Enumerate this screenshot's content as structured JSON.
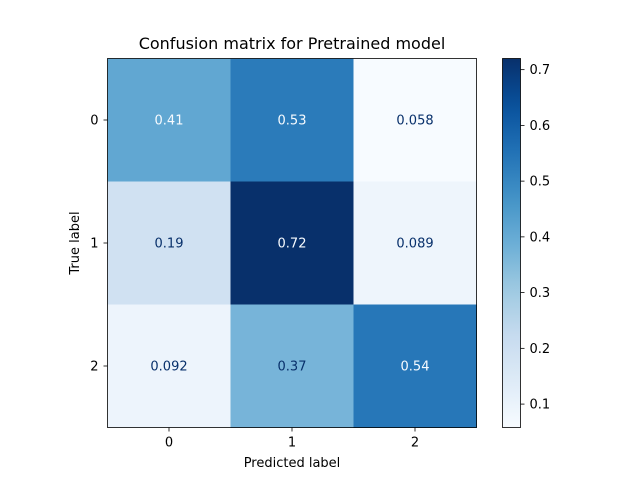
{
  "chart_data": {
    "type": "heatmap",
    "title": "Confusion matrix for Pretrained model",
    "xlabel": "Predicted label",
    "ylabel": "True label",
    "x_categories": [
      "0",
      "1",
      "2"
    ],
    "y_categories": [
      "0",
      "1",
      "2"
    ],
    "values": [
      [
        0.41,
        0.53,
        0.058
      ],
      [
        0.19,
        0.72,
        0.089
      ],
      [
        0.092,
        0.37,
        0.54
      ]
    ],
    "cell_labels": [
      [
        "0.41",
        "0.53",
        "0.058"
      ],
      [
        "0.19",
        "0.72",
        "0.089"
      ],
      [
        "0.092",
        "0.37",
        "0.54"
      ]
    ],
    "colormap": "Blues",
    "colorbar": {
      "range": [
        0.058,
        0.72
      ],
      "ticks": [
        0.1,
        0.2,
        0.3,
        0.4,
        0.5,
        0.6,
        0.7
      ],
      "tick_labels": [
        "0.1",
        "0.2",
        "0.3",
        "0.4",
        "0.5",
        "0.6",
        "0.7"
      ]
    },
    "grid": false
  }
}
